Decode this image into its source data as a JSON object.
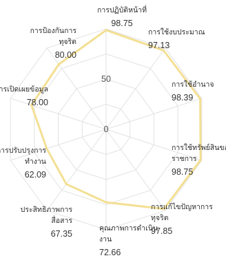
{
  "chart_data": {
    "type": "radar",
    "title": "",
    "rlim": [
      0,
      100
    ],
    "ticks": [
      0,
      50
    ],
    "grid": true,
    "legend": "none",
    "series": [
      {
        "color": "#f3df93",
        "values": [
          98.75,
          97.13,
          98.39,
          98.75,
          97.85,
          72.66,
          67.35,
          62.09,
          78.0,
          80.0
        ]
      }
    ],
    "categories": [
      {
        "name_lines": [
          "การปฏิบัติหน้าที่"
        ],
        "value_text": "98.75"
      },
      {
        "name_lines": [
          "การใช้งบประมาณ"
        ],
        "value_text": "97.13"
      },
      {
        "name_lines": [
          "การใช้อำนาจ"
        ],
        "value_text": "98.39"
      },
      {
        "name_lines": [
          "การใช้ทรัพย์สินของ",
          "ราชการ"
        ],
        "value_text": "98.75"
      },
      {
        "name_lines": [
          "การแก้ไขปัญหาการ",
          "ทุจริต"
        ],
        "value_text": "97.85"
      },
      {
        "name_lines": [
          "คุณภาพการดำเนิน",
          "งาน"
        ],
        "value_text": "72.66"
      },
      {
        "name_lines": [
          "ประสิทธิภาพการ",
          "สื่อสาร"
        ],
        "value_text": "67.35"
      },
      {
        "name_lines": [
          "การปรับปรุงการ",
          "ทำงาน"
        ],
        "value_text": "62.09"
      },
      {
        "name_lines": [
          "การเปิดเผยข้อมูล"
        ],
        "value_text": "78.00"
      },
      {
        "name_lines": [
          "การป้องกันการ",
          "ทุจริต"
        ],
        "value_text": "80.00"
      }
    ],
    "gridline_color": "#e2e2e2",
    "text_color": "#2b2b2b"
  }
}
